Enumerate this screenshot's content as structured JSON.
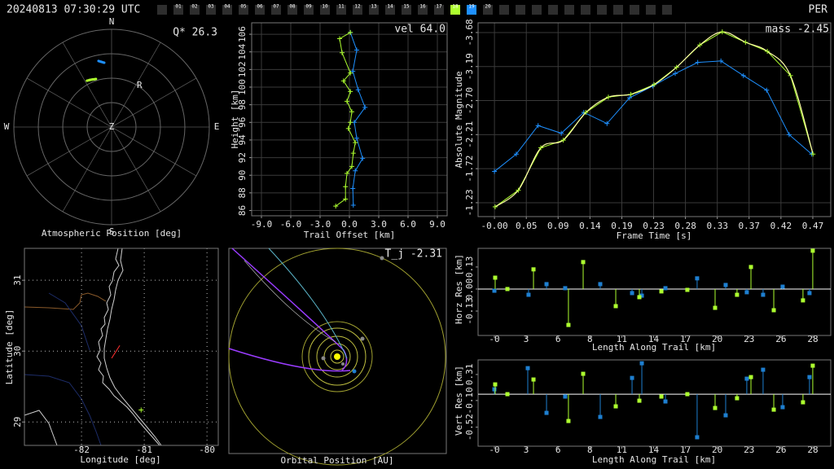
{
  "header": {
    "timestamp": "20240813 07:30:29 UTC",
    "shower": "PER",
    "frames": [
      {
        "label": "01"
      },
      {
        "label": "02"
      },
      {
        "label": "03"
      },
      {
        "label": "04"
      },
      {
        "label": "05"
      },
      {
        "label": "06"
      },
      {
        "label": "07"
      },
      {
        "label": "08"
      },
      {
        "label": "09"
      },
      {
        "label": "10"
      },
      {
        "label": "11"
      },
      {
        "label": "12"
      },
      {
        "label": "13"
      },
      {
        "label": "14"
      },
      {
        "label": "15"
      },
      {
        "label": "16"
      },
      {
        "label": "17"
      },
      {
        "label": "18",
        "color": "#adff2f"
      },
      {
        "label": "19",
        "color": "#1e90ff"
      },
      {
        "label": "20"
      }
    ]
  },
  "chart_data": [
    {
      "type": "polar",
      "title": "Atmospheric Position [deg]",
      "annotation": "Q* 26.3",
      "directions": [
        "N",
        "E",
        "S",
        "W"
      ],
      "center_label": "Z",
      "rlim": [
        0,
        90
      ],
      "rticks": [
        22.5,
        45,
        67.5,
        90
      ],
      "series": [
        {
          "color": "#1e90ff",
          "azimuth": [
            348.8,
            351,
            353.5
          ],
          "zenith": [
            62,
            60.8,
            59.6
          ]
        },
        {
          "color": "#adff2f",
          "azimuth": [
            332,
            335,
            338,
            340,
            342
          ],
          "zenith": [
            48.3,
            47.8,
            47.2,
            46.8,
            46.5
          ]
        }
      ],
      "label": {
        "text": "R",
        "azimuth": 34,
        "zenith": 46
      }
    },
    {
      "type": "line",
      "xlabel": "Trail Offset [km]",
      "ylabel": "Height [km]",
      "annotation": "vel 64.0",
      "xlim": [
        -10,
        10
      ],
      "ylim": [
        85.4,
        107.3
      ],
      "xticks": [
        {
          "value": -9,
          "label": "-9.0"
        },
        {
          "value": -6,
          "label": "-6.0"
        },
        {
          "value": -3,
          "label": "-3.0"
        },
        {
          "value": 0,
          "label": "0.0"
        },
        {
          "value": 3,
          "label": "3.0"
        },
        {
          "value": 6,
          "label": "6.0"
        },
        {
          "value": 9,
          "label": "9.0"
        }
      ],
      "yticks": [
        86,
        88,
        90,
        92,
        94,
        96,
        98,
        100,
        102,
        104,
        106
      ],
      "grid": true,
      "series": [
        {
          "color": "#1e90ff",
          "marker": "+",
          "x": [
            0.1,
            0.75,
            0.35,
            0.9,
            1.6,
            0.5,
            0.75,
            1.35,
            0.6,
            0.35,
            0.4
          ],
          "values": [
            106.2,
            104.2,
            101.8,
            99.7,
            97.7,
            96.0,
            94.2,
            91.9,
            90.5,
            88.5,
            86.6
          ]
        },
        {
          "color": "#adff2f",
          "marker": "+",
          "x": [
            0.1,
            -1.0,
            -0.75,
            0.1,
            -0.6,
            0.1,
            -0.25,
            0.25,
            0.1,
            -0.1,
            0.6,
            0.4,
            0.25,
            -0.25,
            -0.4,
            -0.4,
            -1.4
          ],
          "values": [
            106.2,
            105.5,
            103.9,
            101.6,
            100.7,
            99.5,
            98.4,
            97.2,
            96.0,
            95.3,
            93.7,
            92.5,
            91.0,
            90.2,
            88.7,
            87.3,
            86.5
          ]
        }
      ]
    },
    {
      "type": "line",
      "xlabel": "Frame Time [s]",
      "ylabel": "Absolute Magnitude",
      "annotation": "mass -2.45",
      "xlim": [
        -0.024,
        0.493
      ],
      "ylim": [
        -1.03,
        -3.82
      ],
      "xticks": [
        {
          "value": 0,
          "label": "-0.00"
        },
        {
          "value": 0.0467,
          "label": "0.05"
        },
        {
          "value": 0.0933,
          "label": "0.09"
        },
        {
          "value": 0.14,
          "label": "0.14"
        },
        {
          "value": 0.1867,
          "label": "0.19"
        },
        {
          "value": 0.2333,
          "label": "0.23"
        },
        {
          "value": 0.28,
          "label": "0.28"
        },
        {
          "value": 0.3267,
          "label": "0.33"
        },
        {
          "value": 0.3733,
          "label": "0.37"
        },
        {
          "value": 0.42,
          "label": "0.42"
        },
        {
          "value": 0.4667,
          "label": "0.47"
        }
      ],
      "yticks": [
        -3.68,
        -3.19,
        {
          "value": -2.7,
          "label": "-2.70"
        },
        -2.21,
        -1.72,
        -1.23
      ],
      "grid": true,
      "series": [
        {
          "color": "#1e90ff",
          "marker": "+",
          "x": [
            0,
            0.032,
            0.064,
            0.098,
            0.131,
            0.165,
            0.198,
            0.232,
            0.265,
            0.298,
            0.332,
            0.365,
            0.399,
            0.432,
            0.465
          ],
          "values": [
            -1.68,
            -1.93,
            -2.34,
            -2.23,
            -2.53,
            -2.37,
            -2.74,
            -2.91,
            -3.09,
            -3.25,
            -3.27,
            -3.06,
            -2.85,
            -2.21,
            -1.93
          ]
        },
        {
          "color": "#adff2f",
          "marker": "+",
          "smooth": true,
          "smooth_color": "#ffffa8",
          "x": [
            0.001,
            0.035,
            0.068,
            0.101,
            0.134,
            0.167,
            0.2,
            0.234,
            0.267,
            0.301,
            0.334,
            0.368,
            0.4,
            0.434,
            0.467
          ],
          "values": [
            -1.17,
            -1.41,
            -2.02,
            -2.13,
            -2.53,
            -2.75,
            -2.79,
            -2.93,
            -3.18,
            -3.5,
            -3.69,
            -3.54,
            -3.41,
            -3.06,
            -1.93
          ]
        }
      ]
    },
    {
      "type": "map",
      "xlabel": "Longitude [deg]",
      "ylabel": "Latitude [deg]",
      "xlim": [
        -82.91,
        -79.82
      ],
      "ylim": [
        28.67,
        31.45
      ],
      "xticks": [
        -82,
        -81,
        -80
      ],
      "yticks": [
        29,
        30,
        31
      ],
      "grid": "dotted",
      "series": [
        {
          "color": "#ff3030",
          "x": [
            -81.52,
            -81.39
          ],
          "values": [
            29.9,
            30.08
          ]
        },
        {
          "color": "#adff2f",
          "marker": "+",
          "x": [
            -81.05
          ],
          "values": [
            29.17
          ]
        }
      ]
    },
    {
      "type": "orbit",
      "title": "Orbital Position [AU]",
      "annotation": "T_j -2.31"
    },
    {
      "type": "stem",
      "xlabel": "Length Along Trail [km]",
      "ylabel": "Horz Res [km]",
      "xlim": [
        -1.45,
        29.93
      ],
      "ylim": [
        -0.274,
        0.24
      ],
      "xticks": [
        {
          "value": 0,
          "label": "-0"
        },
        {
          "value": 2.833,
          "label": "3"
        },
        {
          "value": 5.667,
          "label": "6"
        },
        {
          "value": 8.5,
          "label": "8"
        },
        {
          "value": 11.333,
          "label": "11"
        },
        {
          "value": 14.167,
          "label": "14"
        },
        {
          "value": 17,
          "label": "17"
        },
        {
          "value": 19.833,
          "label": "20"
        },
        {
          "value": 22.667,
          "label": "23"
        },
        {
          "value": 25.5,
          "label": "26"
        },
        {
          "value": 28.333,
          "label": "28"
        }
      ],
      "yticks": [
        0.13,
        {
          "value": 0,
          "label": "0.00"
        },
        -0.13
      ],
      "grid": false,
      "series": [
        {
          "color": "#1e7fd0",
          "x": [
            0,
            3.04,
            4.64,
            6.3,
            9.42,
            12.25,
            13.12,
            15.22,
            18.04,
            20.58,
            22.46,
            23.91,
            25.65,
            28.04
          ],
          "values": [
            -0.01,
            -0.034,
            0.029,
            0.005,
            0.029,
            -0.024,
            -0.039,
            0.005,
            0.063,
            0.024,
            -0.019,
            -0.034,
            0.014,
            -0.024
          ]
        },
        {
          "color": "#adff2f",
          "x": [
            0.07,
            1.16,
            3.48,
            6.59,
            7.9,
            10.8,
            12.9,
            14.86,
            17.17,
            19.64,
            21.59,
            22.83,
            24.86,
            27.46,
            28.33
          ],
          "values": [
            0.067,
            0,
            0.116,
            -0.212,
            0.159,
            -0.101,
            -0.048,
            -0.014,
            -0.005,
            -0.111,
            -0.034,
            0.13,
            -0.125,
            -0.067,
            0.226
          ]
        }
      ]
    },
    {
      "type": "stem",
      "xlabel": "Length Along Trail [km]",
      "ylabel": "Vert Res [km]",
      "xlim": [
        -1.45,
        29.93
      ],
      "ylim": [
        -0.82,
        0.54
      ],
      "xticks": [
        {
          "value": 0,
          "label": "-0"
        },
        {
          "value": 2.833,
          "label": "3"
        },
        {
          "value": 5.667,
          "label": "6"
        },
        {
          "value": 8.5,
          "label": "8"
        },
        {
          "value": 11.333,
          "label": "11"
        },
        {
          "value": 14.167,
          "label": "14"
        },
        {
          "value": 17,
          "label": "17"
        },
        {
          "value": 19.833,
          "label": "20"
        },
        {
          "value": 22.667,
          "label": "23"
        },
        {
          "value": 25.5,
          "label": "26"
        },
        {
          "value": 28.333,
          "label": "28"
        }
      ],
      "yticks": [
        0.31,
        {
          "value": -0.1,
          "label": "-0.10"
        },
        -0.52
      ],
      "grid": false,
      "series": [
        {
          "color": "#1e7fd0",
          "x": [
            0,
            2.97,
            4.64,
            6.3,
            9.42,
            12.25,
            13.12,
            15.22,
            18.04,
            20.58,
            22.46,
            23.91,
            25.65,
            28.04
          ],
          "values": [
            0.077,
            0.41,
            -0.295,
            -0.038,
            -0.359,
            0.256,
            0.487,
            -0.115,
            -0.679,
            -0.333,
            0.244,
            0.385,
            -0.205,
            0.269
          ]
        },
        {
          "color": "#adff2f",
          "x": [
            0.07,
            1.16,
            3.48,
            6.59,
            7.9,
            10.8,
            12.9,
            14.86,
            17.17,
            19.64,
            21.59,
            22.83,
            24.86,
            27.46,
            28.33
          ],
          "values": [
            0.154,
            0,
            0.231,
            -0.423,
            0.321,
            -0.192,
            -0.103,
            -0.038,
            0,
            -0.218,
            -0.064,
            0.269,
            -0.244,
            -0.128,
            0.449
          ]
        }
      ]
    }
  ]
}
